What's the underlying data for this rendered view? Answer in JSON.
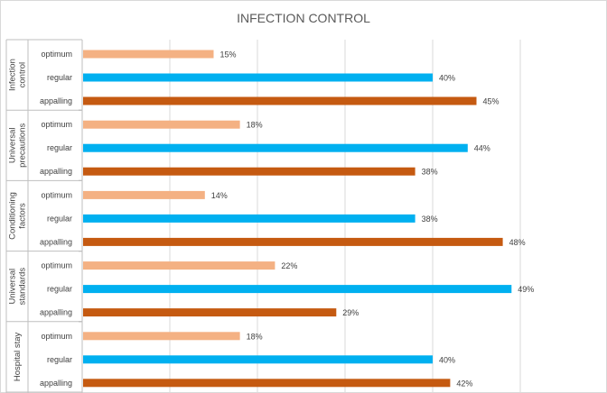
{
  "chart_data": {
    "type": "bar",
    "orientation": "horizontal",
    "title": "INFECTION CONTROL",
    "xlim": [
      0,
      50
    ],
    "grid": true,
    "groups": [
      {
        "name": "Infection control",
        "bars": [
          {
            "label": "optimum",
            "value": 15,
            "display": "15%"
          },
          {
            "label": "regular",
            "value": 40,
            "display": "40%"
          },
          {
            "label": "appalling",
            "value": 45,
            "display": "45%"
          }
        ]
      },
      {
        "name": "Universal precautions",
        "bars": [
          {
            "label": "optimum",
            "value": 18,
            "display": "18%"
          },
          {
            "label": "regular",
            "value": 44,
            "display": "44%"
          },
          {
            "label": "appalling",
            "value": 38,
            "display": "38%"
          }
        ]
      },
      {
        "name": "Conditioning factors",
        "bars": [
          {
            "label": "optimum",
            "value": 14,
            "display": "14%"
          },
          {
            "label": "regular",
            "value": 38,
            "display": "38%"
          },
          {
            "label": "appalling",
            "value": 48,
            "display": "48%"
          }
        ]
      },
      {
        "name": "Universal standards",
        "bars": [
          {
            "label": "optimum",
            "value": 22,
            "display": "22%"
          },
          {
            "label": "regular",
            "value": 49,
            "display": "49%"
          },
          {
            "label": "appalling",
            "value": 29,
            "display": "29%"
          }
        ]
      },
      {
        "name": "Hospital stay",
        "bars": [
          {
            "label": "optimum",
            "value": 18,
            "display": "18%"
          },
          {
            "label": "regular",
            "value": 40,
            "display": "40%"
          },
          {
            "label": "appalling",
            "value": 42,
            "display": "42%"
          }
        ]
      }
    ],
    "colors": {
      "optimum": "#f4b183",
      "regular": "#00b0f0",
      "appalling": "#c55a11",
      "grid": "#d9d9d9",
      "axis": "#bfbfbf"
    }
  }
}
